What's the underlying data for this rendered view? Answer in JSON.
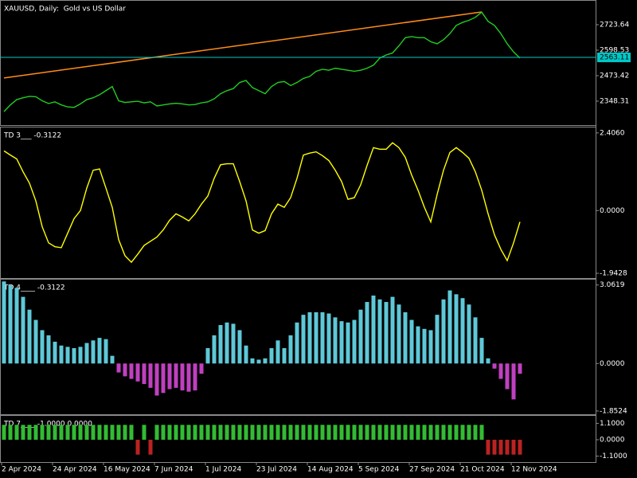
{
  "chart_data": [
    {
      "type": "line",
      "title": "XAUUSD, Daily:  Gold vs US Dollar",
      "color": "#22cc22",
      "categories": [
        "2 Apr 2024",
        null,
        null,
        null,
        null,
        null,
        null,
        null,
        "24 Apr 2024",
        null,
        null,
        null,
        null,
        null,
        null,
        null,
        "16 May 2024",
        null,
        null,
        null,
        null,
        null,
        null,
        null,
        "7 Jun 2024",
        null,
        null,
        null,
        null,
        null,
        null,
        null,
        "1 Jul 2024",
        null,
        null,
        null,
        null,
        null,
        null,
        null,
        "23 Jul 2024",
        null,
        null,
        null,
        null,
        null,
        null,
        null,
        "14 Aug 2024",
        null,
        null,
        null,
        null,
        null,
        null,
        null,
        "5 Sep 2024",
        null,
        null,
        null,
        null,
        null,
        null,
        null,
        "27 Sep 2024",
        null,
        null,
        null,
        null,
        null,
        null,
        null,
        "21 Oct 2024",
        null,
        null,
        null,
        null,
        null,
        null,
        null,
        "12 Nov 2024",
        null
      ],
      "values": [
        2297,
        2330,
        2356,
        2365,
        2372,
        2370,
        2350,
        2337,
        2345,
        2330,
        2320,
        2318,
        2335,
        2356,
        2365,
        2380,
        2400,
        2420,
        2350,
        2342,
        2345,
        2348,
        2340,
        2345,
        2325,
        2330,
        2335,
        2338,
        2335,
        2330,
        2332,
        2340,
        2345,
        2360,
        2385,
        2400,
        2410,
        2440,
        2450,
        2415,
        2400,
        2385,
        2420,
        2440,
        2445,
        2425,
        2440,
        2460,
        2470,
        2495,
        2505,
        2500,
        2510,
        2505,
        2500,
        2495,
        2500,
        2510,
        2525,
        2560,
        2575,
        2585,
        2620,
        2660,
        2665,
        2660,
        2660,
        2640,
        2630,
        2650,
        2680,
        2720,
        2735,
        2745,
        2760,
        2785,
        2740,
        2720,
        2680,
        2630,
        2590,
        2560
      ],
      "ylim": [
        2231,
        2837
      ],
      "yticks": [
        2348.31,
        2473.42,
        2598.53,
        2723.64
      ],
      "current_price": 2563.11,
      "current_price_color": "#00c8c8",
      "trendline": {
        "x": [
          0,
          75
        ],
        "values": [
          2462,
          2786
        ],
        "color": "#ff8c1a"
      }
    },
    {
      "type": "line",
      "title": "TD 3___ -0.3122",
      "color": "#ffff00",
      "values": [
        1.85,
        1.72,
        1.6,
        1.2,
        0.85,
        0.3,
        -0.5,
        -1.0,
        -1.12,
        -1.15,
        -0.7,
        -0.25,
        0.0,
        0.7,
        1.25,
        1.29,
        0.7,
        0.1,
        -0.9,
        -1.4,
        -1.6,
        -1.35,
        -1.08,
        -0.95,
        -0.82,
        -0.6,
        -0.3,
        -0.1,
        -0.2,
        -0.32,
        -0.1,
        0.2,
        0.45,
        1.0,
        1.42,
        1.45,
        1.45,
        0.9,
        0.3,
        -0.6,
        -0.7,
        -0.62,
        -0.1,
        0.2,
        0.1,
        0.4,
        1.0,
        1.72,
        1.78,
        1.82,
        1.7,
        1.55,
        1.25,
        0.9,
        0.35,
        0.4,
        0.8,
        1.4,
        1.95,
        1.9,
        1.9,
        2.1,
        1.95,
        1.65,
        1.1,
        0.63,
        0.1,
        -0.35,
        0.5,
        1.25,
        1.8,
        1.95,
        1.8,
        1.62,
        1.2,
        0.63,
        -0.1,
        -0.75,
        -1.2,
        -1.55,
        -1.0,
        -0.35
      ],
      "ylim": [
        -2.09,
        2.55
      ],
      "yticks": [
        -1.9428,
        {
          "value": 0,
          "label": "0.0000"
        },
        {
          "value": 2.406,
          "label": "2.4060"
        }
      ]
    },
    {
      "type": "bar",
      "title": "TD 4____ -0.3122",
      "positive_color": "#5ec8d8",
      "negative_color": "#c040c0",
      "values": [
        3.2,
        3.05,
        2.95,
        2.6,
        2.1,
        1.7,
        1.3,
        1.1,
        0.85,
        0.7,
        0.65,
        0.6,
        0.65,
        0.8,
        0.9,
        1.0,
        0.95,
        0.3,
        -0.35,
        -0.5,
        -0.6,
        -0.7,
        -0.8,
        -0.95,
        -1.25,
        -1.15,
        -1.0,
        -0.95,
        -1.05,
        -1.1,
        -1.05,
        -0.4,
        0.6,
        1.1,
        1.5,
        1.6,
        1.55,
        1.3,
        0.7,
        0.2,
        0.15,
        0.2,
        0.6,
        0.9,
        0.6,
        1.1,
        1.6,
        1.9,
        2.0,
        2.0,
        2.0,
        1.95,
        1.8,
        1.65,
        1.6,
        1.7,
        2.1,
        2.4,
        2.65,
        2.5,
        2.4,
        2.6,
        2.3,
        2.0,
        1.7,
        1.45,
        1.35,
        1.3,
        1.9,
        2.5,
        2.85,
        2.7,
        2.55,
        2.3,
        1.8,
        1.0,
        0.2,
        -0.2,
        -0.6,
        -1.0,
        -1.4,
        -0.4
      ],
      "ylim": [
        -1.98,
        3.24
      ],
      "yticks": [
        -1.8524,
        {
          "value": 0,
          "label": "0.0000"
        },
        3.0619
      ]
    },
    {
      "type": "bar",
      "title": "TD 7____ -1.0000 0.0000",
      "positive_color": "#33bb33",
      "negative_color": "#bb2222",
      "values": [
        1,
        1,
        1,
        1,
        1,
        1,
        1,
        1,
        1,
        1,
        1,
        1,
        1,
        1,
        1,
        1,
        1,
        1,
        1,
        1,
        1,
        -1,
        1,
        -1,
        1,
        1,
        1,
        1,
        1,
        1,
        1,
        1,
        1,
        1,
        1,
        1,
        1,
        1,
        1,
        1,
        1,
        1,
        1,
        1,
        1,
        1,
        1,
        1,
        1,
        1,
        1,
        1,
        1,
        1,
        1,
        1,
        1,
        1,
        1,
        1,
        1,
        1,
        1,
        1,
        1,
        1,
        1,
        1,
        1,
        1,
        1,
        1,
        1,
        1,
        1,
        1,
        -1,
        -1,
        -1,
        -1,
        -1,
        -1
      ],
      "ylim": [
        -1.5,
        1.55
      ],
      "yticks": [
        {
          "value": -1.1,
          "label": "-1.1000"
        },
        {
          "value": 0,
          "label": "0.0000"
        },
        {
          "value": 1.1,
          "label": "1.1000"
        }
      ]
    }
  ]
}
